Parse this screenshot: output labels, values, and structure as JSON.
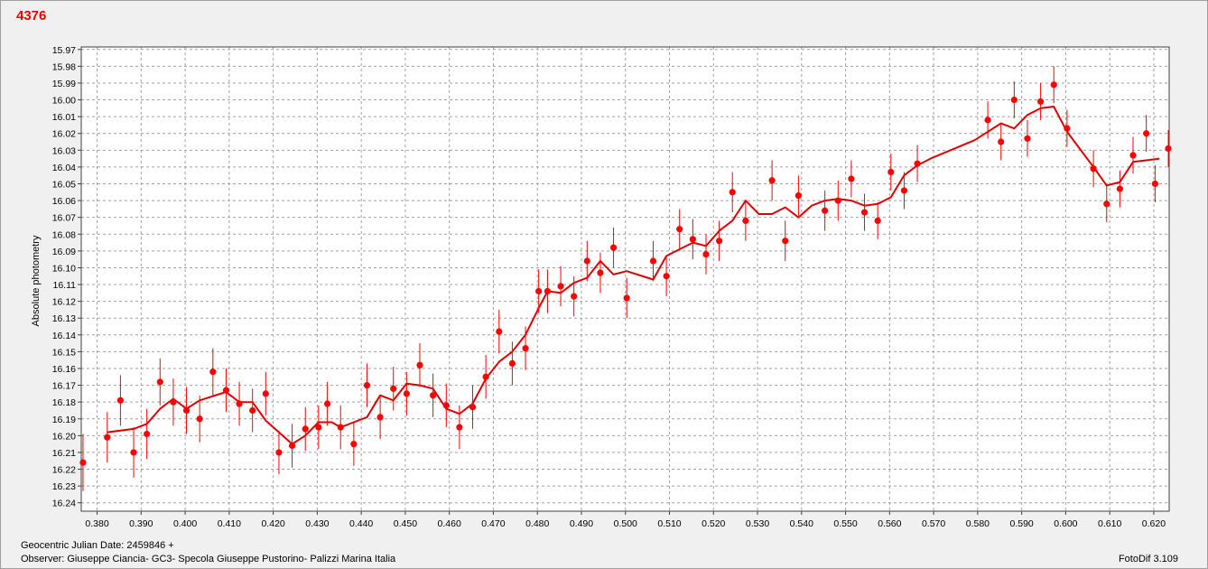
{
  "chart_data": {
    "type": "scatter",
    "title": "4376",
    "xlabel": "",
    "ylabel": "Absolute photometry",
    "xlim": [
      0.3764,
      0.6235
    ],
    "ylim": [
      16.245,
      15.9685
    ],
    "y_inverted": true,
    "grid": true,
    "x_ticks": [
      "0.380",
      "0.390",
      "0.400",
      "0.410",
      "0.420",
      "0.430",
      "0.440",
      "0.450",
      "0.460",
      "0.470",
      "0.480",
      "0.490",
      "0.500",
      "0.510",
      "0.520",
      "0.530",
      "0.540",
      "0.550",
      "0.560",
      "0.570",
      "0.580",
      "0.590",
      "0.600",
      "0.610",
      "0.620"
    ],
    "y_ticks": [
      "15.97",
      "15.98",
      "15.99",
      "16.00",
      "16.01",
      "16.02",
      "16.03",
      "16.04",
      "16.05",
      "16.06",
      "16.07",
      "16.08",
      "16.09",
      "16.10",
      "16.11",
      "16.12",
      "16.13",
      "16.14",
      "16.15",
      "16.16",
      "16.17",
      "16.18",
      "16.19",
      "16.20",
      "16.21",
      "16.22",
      "16.23",
      "16.24"
    ],
    "colors": {
      "series": "#ff0000",
      "line": "#e00000",
      "title": "#e60000",
      "grid": "#a0a0a0"
    },
    "series": [
      {
        "type": "scatter_errorbar",
        "points": [
          {
            "x": 0.3768,
            "y": 16.216,
            "err": 0.017
          },
          {
            "x": 0.3823,
            "y": 16.201,
            "err": 0.015
          },
          {
            "x": 0.3853,
            "y": 16.179,
            "err": 0.015
          },
          {
            "x": 0.3883,
            "y": 16.21,
            "err": 0.015
          },
          {
            "x": 0.3913,
            "y": 16.199,
            "err": 0.015
          },
          {
            "x": 0.3943,
            "y": 16.168,
            "err": 0.014
          },
          {
            "x": 0.3973,
            "y": 16.18,
            "err": 0.014
          },
          {
            "x": 0.4003,
            "y": 16.185,
            "err": 0.014
          },
          {
            "x": 0.4033,
            "y": 16.19,
            "err": 0.014
          },
          {
            "x": 0.4063,
            "y": 16.162,
            "err": 0.014
          },
          {
            "x": 0.4093,
            "y": 16.173,
            "err": 0.013
          },
          {
            "x": 0.4123,
            "y": 16.181,
            "err": 0.013
          },
          {
            "x": 0.4153,
            "y": 16.185,
            "err": 0.013
          },
          {
            "x": 0.4183,
            "y": 16.175,
            "err": 0.013
          },
          {
            "x": 0.4213,
            "y": 16.21,
            "err": 0.013
          },
          {
            "x": 0.4243,
            "y": 16.206,
            "err": 0.013
          },
          {
            "x": 0.4273,
            "y": 16.196,
            "err": 0.013
          },
          {
            "x": 0.4303,
            "y": 16.195,
            "err": 0.013
          },
          {
            "x": 0.4323,
            "y": 16.181,
            "err": 0.013
          },
          {
            "x": 0.4353,
            "y": 16.195,
            "err": 0.013
          },
          {
            "x": 0.4383,
            "y": 16.205,
            "err": 0.013
          },
          {
            "x": 0.4413,
            "y": 16.17,
            "err": 0.013
          },
          {
            "x": 0.4443,
            "y": 16.189,
            "err": 0.013
          },
          {
            "x": 0.4473,
            "y": 16.172,
            "err": 0.013
          },
          {
            "x": 0.4503,
            "y": 16.175,
            "err": 0.013
          },
          {
            "x": 0.4533,
            "y": 16.158,
            "err": 0.013
          },
          {
            "x": 0.4563,
            "y": 16.176,
            "err": 0.013
          },
          {
            "x": 0.4593,
            "y": 16.182,
            "err": 0.013
          },
          {
            "x": 0.4623,
            "y": 16.195,
            "err": 0.013
          },
          {
            "x": 0.4653,
            "y": 16.183,
            "err": 0.013
          },
          {
            "x": 0.4683,
            "y": 16.165,
            "err": 0.013
          },
          {
            "x": 0.4713,
            "y": 16.138,
            "err": 0.013
          },
          {
            "x": 0.4743,
            "y": 16.157,
            "err": 0.013
          },
          {
            "x": 0.4773,
            "y": 16.148,
            "err": 0.013
          },
          {
            "x": 0.4803,
            "y": 16.114,
            "err": 0.013
          },
          {
            "x": 0.4823,
            "y": 16.114,
            "err": 0.013
          },
          {
            "x": 0.4853,
            "y": 16.111,
            "err": 0.012
          },
          {
            "x": 0.4883,
            "y": 16.117,
            "err": 0.012
          },
          {
            "x": 0.4913,
            "y": 16.096,
            "err": 0.012
          },
          {
            "x": 0.4943,
            "y": 16.103,
            "err": 0.012
          },
          {
            "x": 0.4973,
            "y": 16.088,
            "err": 0.012
          },
          {
            "x": 0.5003,
            "y": 16.118,
            "err": 0.012
          },
          {
            "x": 0.5063,
            "y": 16.096,
            "err": 0.012
          },
          {
            "x": 0.5093,
            "y": 16.105,
            "err": 0.012
          },
          {
            "x": 0.5123,
            "y": 16.077,
            "err": 0.012
          },
          {
            "x": 0.5153,
            "y": 16.083,
            "err": 0.012
          },
          {
            "x": 0.5183,
            "y": 16.092,
            "err": 0.012
          },
          {
            "x": 0.5213,
            "y": 16.084,
            "err": 0.012
          },
          {
            "x": 0.5243,
            "y": 16.055,
            "err": 0.012
          },
          {
            "x": 0.5273,
            "y": 16.072,
            "err": 0.012
          },
          {
            "x": 0.5333,
            "y": 16.048,
            "err": 0.012
          },
          {
            "x": 0.5363,
            "y": 16.084,
            "err": 0.012
          },
          {
            "x": 0.5393,
            "y": 16.057,
            "err": 0.012
          },
          {
            "x": 0.5453,
            "y": 16.066,
            "err": 0.012
          },
          {
            "x": 0.5483,
            "y": 16.06,
            "err": 0.012
          },
          {
            "x": 0.5513,
            "y": 16.047,
            "err": 0.011
          },
          {
            "x": 0.5543,
            "y": 16.067,
            "err": 0.011
          },
          {
            "x": 0.5573,
            "y": 16.072,
            "err": 0.011
          },
          {
            "x": 0.5603,
            "y": 16.043,
            "err": 0.011
          },
          {
            "x": 0.5633,
            "y": 16.054,
            "err": 0.011
          },
          {
            "x": 0.5663,
            "y": 16.038,
            "err": 0.011
          },
          {
            "x": 0.5823,
            "y": 16.012,
            "err": 0.011
          },
          {
            "x": 0.5853,
            "y": 16.025,
            "err": 0.011
          },
          {
            "x": 0.5883,
            "y": 16.0,
            "err": 0.011
          },
          {
            "x": 0.5913,
            "y": 16.023,
            "err": 0.011
          },
          {
            "x": 0.5943,
            "y": 16.001,
            "err": 0.011
          },
          {
            "x": 0.5973,
            "y": 15.991,
            "err": 0.011
          },
          {
            "x": 0.6003,
            "y": 16.017,
            "err": 0.011
          },
          {
            "x": 0.6063,
            "y": 16.041,
            "err": 0.011
          },
          {
            "x": 0.6093,
            "y": 16.062,
            "err": 0.011
          },
          {
            "x": 0.6123,
            "y": 16.053,
            "err": 0.011
          },
          {
            "x": 0.6153,
            "y": 16.033,
            "err": 0.011
          },
          {
            "x": 0.6183,
            "y": 16.02,
            "err": 0.011
          },
          {
            "x": 0.6203,
            "y": 16.05,
            "err": 0.011
          },
          {
            "x": 0.6233,
            "y": 16.029,
            "err": 0.011
          }
        ]
      },
      {
        "type": "line",
        "x": [
          0.3823,
          0.3883,
          0.3913,
          0.3943,
          0.3973,
          0.4003,
          0.4033,
          0.4093,
          0.4123,
          0.4153,
          0.4183,
          0.4213,
          0.4243,
          0.4273,
          0.4303,
          0.4333,
          0.4353,
          0.4383,
          0.4413,
          0.4443,
          0.4473,
          0.4503,
          0.4533,
          0.4563,
          0.4593,
          0.4623,
          0.4653,
          0.4683,
          0.4713,
          0.4743,
          0.4773,
          0.4803,
          0.4823,
          0.4853,
          0.4883,
          0.4913,
          0.4943,
          0.4973,
          0.5003,
          0.5063,
          0.5093,
          0.5123,
          0.5153,
          0.5183,
          0.5213,
          0.5243,
          0.5273,
          0.5303,
          0.5333,
          0.5363,
          0.5393,
          0.5423,
          0.5453,
          0.5483,
          0.5513,
          0.5543,
          0.5573,
          0.5603,
          0.5633,
          0.5663,
          0.5693,
          0.5793,
          0.5853,
          0.5883,
          0.5913,
          0.5943,
          0.5973,
          0.6003,
          0.6063,
          0.6093,
          0.6123,
          0.6153,
          0.6183,
          0.6213
        ],
        "y": [
          16.198,
          16.196,
          16.193,
          16.184,
          16.178,
          16.184,
          16.179,
          16.174,
          16.18,
          16.18,
          16.191,
          16.198,
          16.205,
          16.2,
          16.192,
          16.192,
          16.195,
          16.192,
          16.189,
          16.176,
          16.179,
          16.169,
          16.17,
          16.172,
          16.184,
          16.187,
          16.181,
          16.166,
          16.156,
          16.15,
          16.14,
          16.124,
          16.114,
          16.115,
          16.109,
          16.106,
          16.096,
          16.104,
          16.102,
          16.107,
          16.093,
          16.089,
          16.085,
          16.087,
          16.078,
          16.072,
          16.06,
          16.068,
          16.068,
          16.064,
          16.07,
          16.063,
          16.06,
          16.059,
          16.06,
          16.063,
          16.062,
          16.058,
          16.045,
          16.039,
          16.035,
          16.024,
          16.014,
          16.017,
          16.009,
          16.005,
          16.004,
          16.019,
          16.04,
          16.051,
          16.049,
          16.037,
          16.036,
          16.035
        ]
      }
    ]
  },
  "footer": {
    "date_label": "Geocentric Julian Date: 2459846 +",
    "observer": "Observer: Giuseppe Ciancia- GC3- Specola Giuseppe Pustorino- Palizzi Marina Italia",
    "software": "FotoDif 3.109"
  }
}
